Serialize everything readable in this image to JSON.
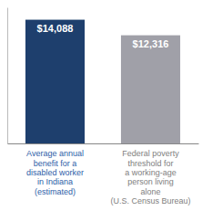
{
  "chart_data": {
    "type": "bar",
    "categories": [
      "Average annual\nbenefit for a\ndisabled worker\nin Indiana\n(estimated)",
      "Federal poverty\nthreshold for\na working-age\nperson living\nalone\n(U.S. Census Bureau)"
    ],
    "values": [
      14088,
      12316
    ],
    "value_labels": [
      "$14,088",
      "$12,316"
    ],
    "colors": [
      "#1e3f6d",
      "#a0a0a8"
    ],
    "ylim": [
      0,
      15500
    ],
    "data_labels": true,
    "tick_labels": "x"
  }
}
